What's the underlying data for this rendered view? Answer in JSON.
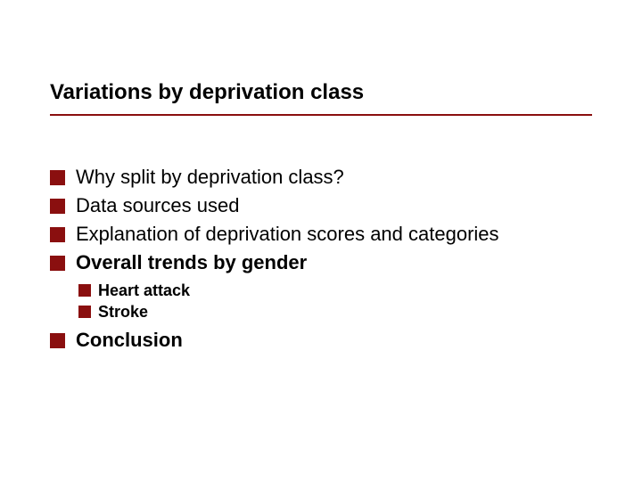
{
  "slide": {
    "title": "Variations by deprivation class",
    "divider_color": "#8a0f0f",
    "bullet_color": "#8a0f0f",
    "text_color": "#000000",
    "title_fontsize": 24,
    "l1_fontsize": 22,
    "l2_fontsize": 18,
    "background_color": "#ffffff",
    "bullets_l1": [
      {
        "text": "Why split by deprivation class?",
        "bold": false
      },
      {
        "text": "Data sources used",
        "bold": false
      },
      {
        "text": "Explanation of deprivation scores and categories",
        "bold": false
      },
      {
        "text": "Overall trends by gender",
        "bold": true
      }
    ],
    "bullets_l2": [
      {
        "text": "Heart attack"
      },
      {
        "text": "Stroke"
      }
    ],
    "bullet_after_l2": {
      "text": "Conclusion",
      "bold": true
    }
  }
}
